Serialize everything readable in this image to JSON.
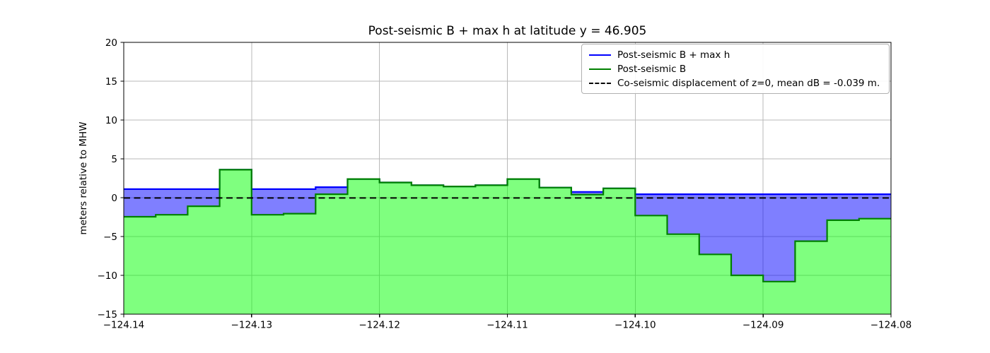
{
  "figure": {
    "background": "#ffffff"
  },
  "chart_data": {
    "type": "area",
    "title": "Post-seismic B + max h at latitude y = 46.905",
    "xlabel": "",
    "ylabel": "meters relative to MHW",
    "xlim": [
      -124.14,
      -124.08
    ],
    "ylim": [
      -15,
      20
    ],
    "grid": true,
    "grid_color": "#b9b9b9",
    "legend_position": "upper right",
    "x_ticks": [
      -124.14,
      -124.13,
      -124.12,
      -124.11,
      -124.1,
      -124.09,
      -124.08
    ],
    "x_tick_labels": [
      "−124.14",
      "−124.13",
      "−124.12",
      "−124.11",
      "−124.10",
      "−124.09",
      "−124.08"
    ],
    "y_ticks": [
      20,
      15,
      10,
      5,
      0,
      -5,
      -10,
      -15
    ],
    "y_tick_labels": [
      "20",
      "15",
      "10",
      "5",
      "0",
      "−5",
      "−10",
      "−15"
    ],
    "x_step_edges": [
      -124.14,
      -124.1375,
      -124.135,
      -124.1325,
      -124.13,
      -124.1275,
      -124.125,
      -124.1225,
      -124.12,
      -124.1175,
      -124.115,
      -124.1125,
      -124.11,
      -124.1075,
      -124.105,
      -124.1025,
      -124.1,
      -124.0975,
      -124.095,
      -124.0925,
      -124.09,
      -124.0875,
      -124.085,
      -124.0825,
      -124.08
    ],
    "series": [
      {
        "name": "Post-seismic B + max h",
        "type": "step",
        "color": "#0000ff",
        "fill_color": "rgba(0,0,255,0.5)",
        "fill_between": "Post-seismic B",
        "values": [
          1.1,
          1.1,
          1.1,
          3.6,
          1.1,
          1.1,
          1.35,
          2.4,
          1.95,
          1.6,
          1.45,
          1.6,
          2.4,
          1.3,
          0.75,
          1.2,
          0.45,
          0.45,
          0.45,
          0.45,
          0.45,
          0.45,
          0.45,
          0.45
        ]
      },
      {
        "name": "Post-seismic B",
        "type": "step",
        "color": "#008000",
        "fill_color": "rgba(0,255,0,0.5)",
        "fill_to": -15,
        "values": [
          -2.45,
          -2.2,
          -1.1,
          3.6,
          -2.2,
          -2.05,
          0.45,
          2.4,
          1.95,
          1.6,
          1.45,
          1.6,
          2.4,
          1.3,
          0.4,
          1.2,
          -2.3,
          -4.7,
          -7.3,
          -10.0,
          -10.8,
          -5.6,
          -2.9,
          -2.7
        ]
      },
      {
        "name": "Co-seismic displacement of z=0, mean dB = -0.039 m.",
        "type": "hline",
        "style": "dashed",
        "color": "#000000",
        "y": -0.039
      }
    ]
  }
}
